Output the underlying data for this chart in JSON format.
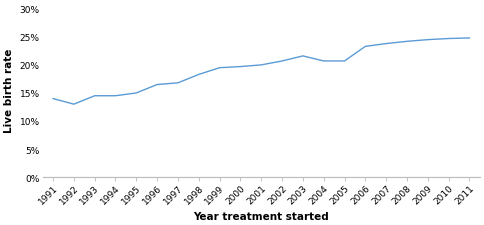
{
  "years": [
    1991,
    1992,
    1993,
    1994,
    1995,
    1996,
    1997,
    1998,
    1999,
    2000,
    2001,
    2002,
    2003,
    2004,
    2005,
    2006,
    2007,
    2008,
    2009,
    2010,
    2011
  ],
  "values": [
    0.14,
    0.13,
    0.145,
    0.145,
    0.15,
    0.165,
    0.168,
    0.183,
    0.195,
    0.197,
    0.2,
    0.207,
    0.216,
    0.207,
    0.207,
    0.233,
    0.238,
    0.242,
    0.245,
    0.247,
    0.248
  ],
  "line_color": "#5b9bd5",
  "xlabel": "Year treatment started",
  "ylabel": "Live birth rate",
  "ylim": [
    0,
    0.31
  ],
  "yticks": [
    0.0,
    0.05,
    0.1,
    0.15,
    0.2,
    0.25,
    0.3
  ],
  "ytick_labels": [
    "0%",
    "5%",
    "10%",
    "15%",
    "20%",
    "25%",
    "30%"
  ],
  "background_color": "#ffffff",
  "line_width": 1.0,
  "tick_fontsize": 6.5,
  "label_fontsize": 7.5
}
